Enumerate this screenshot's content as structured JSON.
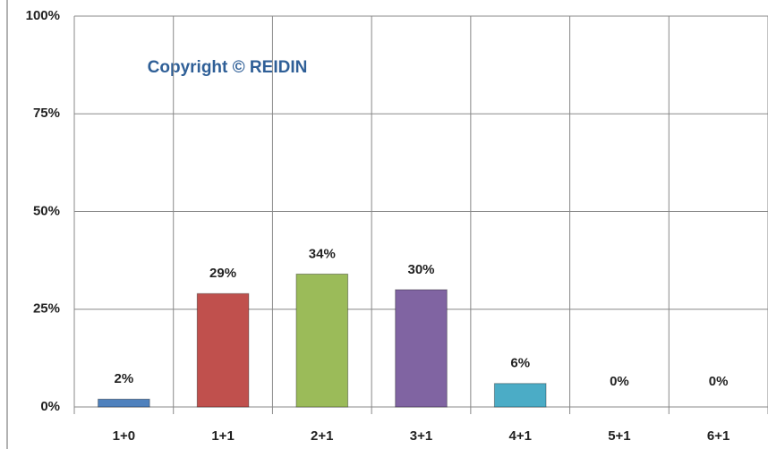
{
  "chart_data": {
    "type": "bar",
    "annotation": "Copyright © REIDIN",
    "categories": [
      "1+0",
      "1+1",
      "2+1",
      "3+1",
      "4+1",
      "5+1",
      "6+1"
    ],
    "values": [
      2,
      29,
      34,
      30,
      6,
      0,
      0
    ],
    "value_labels": [
      "2%",
      "29%",
      "34%",
      "30%",
      "6%",
      "0%",
      "0%"
    ],
    "colors": [
      "#4f81bd",
      "#c0504d",
      "#9bbb59",
      "#8064a2",
      "#4bacc6",
      "#f79646",
      "#4f81bd"
    ],
    "ylim": [
      0,
      100
    ],
    "yticks": [
      {
        "value": 0,
        "label": "0%"
      },
      {
        "value": 25,
        "label": "25%"
      },
      {
        "value": 50,
        "label": "50%"
      },
      {
        "value": 75,
        "label": "75%"
      },
      {
        "value": 100,
        "label": "100%"
      }
    ],
    "grid": true
  }
}
